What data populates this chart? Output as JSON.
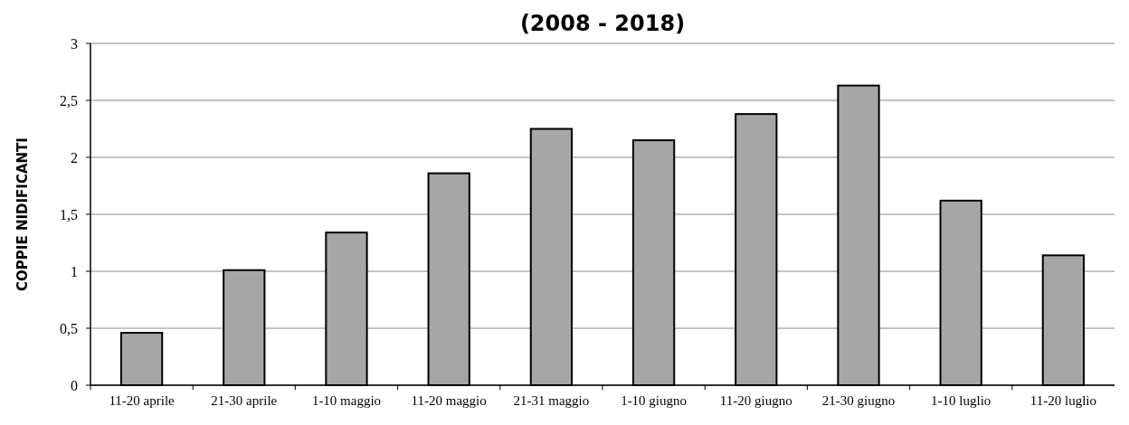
{
  "chart_data": {
    "type": "bar",
    "title": "(2008 - 2018)",
    "ylabel": "COPPIE NIDIFICANTI",
    "categories": [
      "11-20 aprile",
      "21-30 aprile",
      "1-10 maggio",
      "11-20 maggio",
      "21-31 maggio",
      "1-10 giugno",
      "11-20 giugno",
      "21-30 giugno",
      "1-10 luglio",
      "11-20 luglio"
    ],
    "values": [
      0.46,
      1.01,
      1.34,
      1.86,
      2.25,
      2.15,
      2.38,
      2.63,
      1.62,
      1.14
    ],
    "color": "#a6a6a6",
    "ylim": [
      0,
      3
    ],
    "yticks": [
      0,
      {
        "value": 0.5,
        "label": "0,5"
      },
      1,
      {
        "value": 1.5,
        "label": "1,5"
      },
      2,
      {
        "value": 2.5,
        "label": "2,5"
      },
      3
    ],
    "grid": "y"
  }
}
